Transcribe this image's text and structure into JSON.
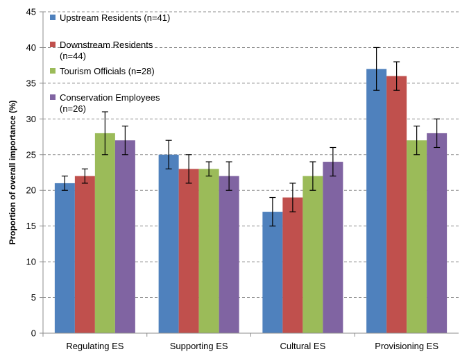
{
  "chart_data": {
    "type": "bar",
    "title": "",
    "xlabel": "",
    "ylabel": "Proportion of overall importance (%)",
    "ylim": [
      0,
      45
    ],
    "yticks": [
      0,
      5,
      10,
      15,
      20,
      25,
      30,
      35,
      40,
      45
    ],
    "grid": "horizontal dashed",
    "legend_position": "top-left",
    "categories": [
      "Regulating ES",
      "Supporting ES",
      "Cultural ES",
      "Provisioning ES"
    ],
    "series": [
      {
        "name": "Upstream Residents (n=41)",
        "name_lines": [
          "Upstream Residents (n=41)"
        ],
        "color": "#4F81BD",
        "values": [
          21,
          25,
          17,
          37
        ],
        "error_low": [
          20,
          23,
          15,
          34
        ],
        "error_high": [
          22,
          27,
          19,
          40
        ]
      },
      {
        "name": "Downstream Residents (n=44)",
        "name_lines": [
          "Downstream Residents",
          "(n=44)"
        ],
        "color": "#C0504D",
        "values": [
          22,
          23,
          19,
          36
        ],
        "error_low": [
          21,
          21,
          17,
          34
        ],
        "error_high": [
          23,
          25,
          21,
          38
        ]
      },
      {
        "name": "Tourism Officials (n=28)",
        "name_lines": [
          "Tourism Officials (n=28)"
        ],
        "color": "#9BBB59",
        "values": [
          28,
          23,
          22,
          27
        ],
        "error_low": [
          25,
          22,
          20,
          25
        ],
        "error_high": [
          31,
          24,
          24,
          29
        ]
      },
      {
        "name": "Conservation Employees (n=26)",
        "name_lines": [
          "Conservation Employees",
          "(n=26)"
        ],
        "color": "#8064A2",
        "values": [
          27,
          22,
          24,
          28
        ],
        "error_low": [
          25,
          20,
          22,
          26
        ],
        "error_high": [
          29,
          24,
          26,
          30
        ]
      }
    ]
  }
}
